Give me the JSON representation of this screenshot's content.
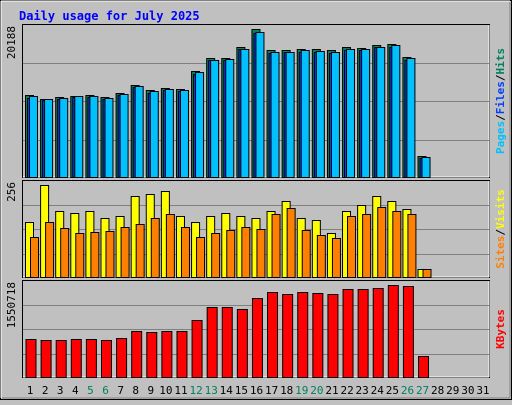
{
  "chart_data": [
    {
      "type": "bar",
      "title": "Daily usage for July 2025",
      "max_label": "20188",
      "legend": [
        "Pages",
        "Files",
        "Hits"
      ],
      "categories": [
        "1",
        "2",
        "3",
        "4",
        "5",
        "6",
        "7",
        "8",
        "9",
        "10",
        "11",
        "12",
        "13",
        "14",
        "15",
        "16",
        "17",
        "18",
        "19",
        "20",
        "21",
        "22",
        "23",
        "24",
        "25",
        "26",
        "27",
        "28",
        "29",
        "30",
        "31"
      ],
      "series": [
        {
          "name": "Hits",
          "values": [
            11200,
            10700,
            10900,
            11100,
            11200,
            10900,
            11500,
            12600,
            11800,
            12100,
            12000,
            14500,
            16200,
            16300,
            17700,
            20188,
            17300,
            17300,
            17500,
            17400,
            17300,
            17700,
            17600,
            18000,
            18200,
            16400,
            2800,
            0,
            0,
            0,
            0
          ]
        },
        {
          "name": "Files",
          "values": [
            10800,
            10500,
            10700,
            10900,
            10900,
            10700,
            11200,
            12300,
            11500,
            11800,
            11700,
            14100,
            15900,
            16000,
            17400,
            19700,
            16900,
            17000,
            17100,
            17000,
            16900,
            17300,
            17300,
            17700,
            17800,
            16000,
            2600,
            0,
            0,
            0,
            0
          ]
        },
        {
          "name": "Pages",
          "values": [
            11000,
            10600,
            10800,
            11000,
            11000,
            10800,
            11300,
            12400,
            11700,
            12000,
            11800,
            14300,
            16000,
            16100,
            17500,
            19800,
            17100,
            17100,
            17300,
            17200,
            17100,
            17500,
            17400,
            17800,
            18000,
            16200,
            2700,
            0,
            0,
            0,
            0
          ]
        }
      ]
    },
    {
      "type": "bar",
      "max_label": "256",
      "legend": [
        "Sites",
        "Visits"
      ],
      "categories": [
        "1",
        "2",
        "3",
        "4",
        "5",
        "6",
        "7",
        "8",
        "9",
        "10",
        "11",
        "12",
        "13",
        "14",
        "15",
        "16",
        "17",
        "18",
        "19",
        "20",
        "21",
        "22",
        "23",
        "24",
        "25",
        "26",
        "27",
        "28",
        "29",
        "30",
        "31"
      ],
      "series": [
        {
          "name": "Visits",
          "values": [
            152,
            256,
            184,
            179,
            184,
            164,
            170,
            226,
            232,
            240,
            170,
            152,
            170,
            179,
            170,
            164,
            184,
            212,
            164,
            158,
            122,
            184,
            200,
            226,
            212,
            190,
            22,
            0,
            0,
            0,
            0
          ]
        },
        {
          "name": "Sites",
          "values": [
            112,
            152,
            136,
            122,
            126,
            128,
            140,
            148,
            164,
            176,
            138,
            110,
            122,
            130,
            140,
            134,
            176,
            192,
            130,
            118,
            108,
            170,
            176,
            196,
            184,
            176,
            22,
            0,
            0,
            0,
            0
          ]
        }
      ]
    },
    {
      "type": "bar",
      "max_label": "1550718",
      "legend": [
        "KBytes"
      ],
      "categories": [
        "1",
        "2",
        "3",
        "4",
        "5",
        "6",
        "7",
        "8",
        "9",
        "10",
        "11",
        "12",
        "13",
        "14",
        "15",
        "16",
        "17",
        "18",
        "19",
        "20",
        "21",
        "22",
        "23",
        "24",
        "25",
        "26",
        "27",
        "28",
        "29",
        "30",
        "31"
      ],
      "series": [
        {
          "name": "KBytes",
          "values": [
            645000,
            630000,
            630000,
            645000,
            645000,
            630000,
            660000,
            775000,
            760000,
            775000,
            775000,
            960000,
            1180000,
            1180000,
            1140000,
            1340000,
            1440000,
            1400000,
            1440000,
            1420000,
            1400000,
            1480000,
            1480000,
            1500000,
            1550718,
            1530000,
            350000,
            0,
            0,
            0,
            0
          ]
        }
      ]
    }
  ],
  "colors": {
    "background": "#c0c0c0",
    "plot": "#c0c0c0",
    "title": "#0000ff",
    "hits": "#00805c",
    "files": "#0040ff",
    "pages": "#00c0ff",
    "visits": "#ffff00",
    "sites": "#ff8000",
    "kbytes": "#ff0000",
    "weekend_day": "#00805c"
  },
  "weekend_days": [
    "5",
    "6",
    "12",
    "13",
    "19",
    "20",
    "26",
    "27"
  ]
}
